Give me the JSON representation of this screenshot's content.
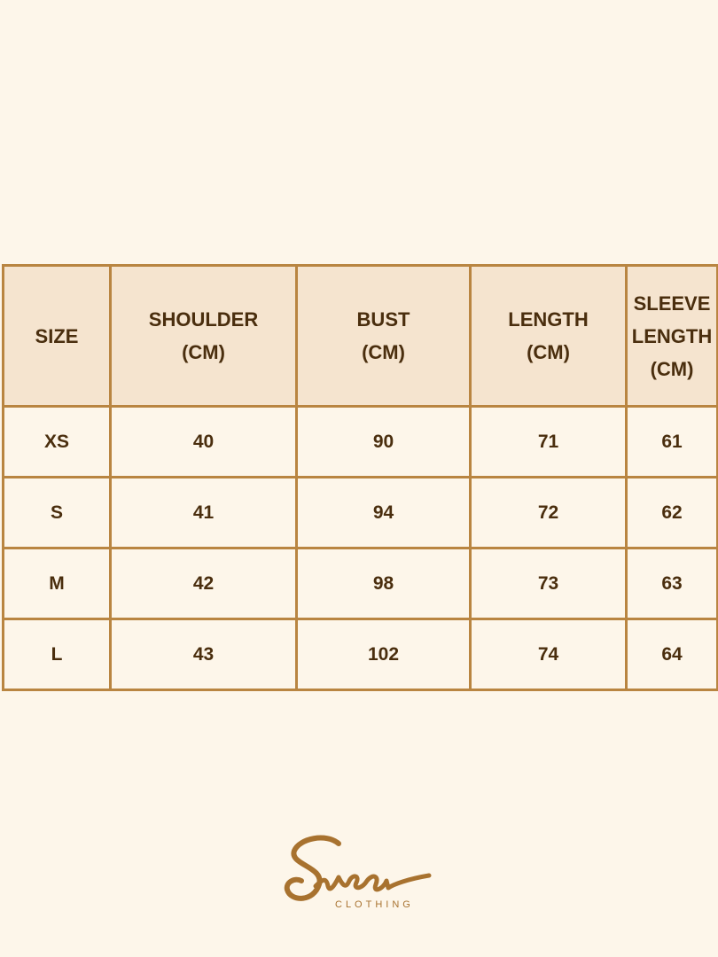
{
  "table": {
    "headers": [
      "SIZE",
      "SHOULDER (CM)",
      "BUST (CM)",
      "LENGTH (CM)",
      "SLEEVE LENGTH (CM)"
    ],
    "header_lines": [
      [
        "SIZE"
      ],
      [
        "SHOULDER",
        "(CM)"
      ],
      [
        "BUST",
        "(CM)"
      ],
      [
        "LENGTH",
        "(CM)"
      ],
      [
        "SLEEVE",
        "LENGTH",
        "(CM)"
      ]
    ],
    "rows": [
      [
        "XS",
        "40",
        "90",
        "71",
        "61"
      ],
      [
        "S",
        "41",
        "94",
        "72",
        "62"
      ],
      [
        "M",
        "42",
        "98",
        "73",
        "63"
      ],
      [
        "L",
        "43",
        "102",
        "74",
        "64"
      ]
    ]
  },
  "logo": {
    "script": "Svea",
    "subtitle": "CLOTHING"
  },
  "colors": {
    "background": "#fdf6ea",
    "header": "#f5e4cf",
    "border": "#b98541",
    "text": "#4a2e0e",
    "logo": "#a8722f"
  }
}
